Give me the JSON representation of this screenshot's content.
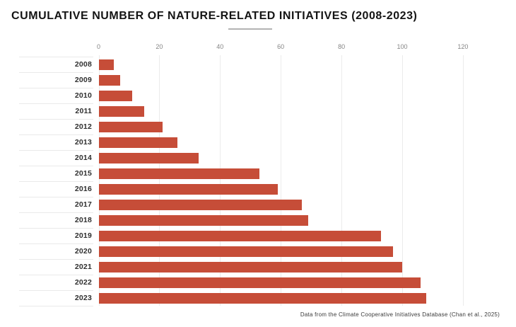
{
  "title": "CUMULATIVE NUMBER OF NATURE-RELATED INITIATIVES (2008-2023)",
  "footer": "Data from the Climate Cooperative Initiatives Database (Chan et al., 2025)",
  "colors": {
    "bar": "#C64D38",
    "gridline": "#ebebeb",
    "row_separator": "#e9e9e9",
    "title_text": "#141414",
    "tick_text": "#858585",
    "year_text": "#2e2e2e",
    "footer_text": "#3a3a3a",
    "title_underline": "#b3b3b3",
    "background": "#ffffff"
  },
  "chart_data": {
    "type": "bar",
    "orientation": "horizontal",
    "title": "CUMULATIVE NUMBER OF NATURE-RELATED INITIATIVES (2008-2023)",
    "categories": [
      "2008",
      "2009",
      "2010",
      "2011",
      "2012",
      "2013",
      "2014",
      "2015",
      "2016",
      "2017",
      "2018",
      "2019",
      "2020",
      "2021",
      "2022",
      "2023"
    ],
    "values": [
      5,
      7,
      11,
      15,
      21,
      26,
      33,
      53,
      59,
      67,
      69,
      93,
      97,
      100,
      106,
      108
    ],
    "xlabel": "",
    "ylabel": "",
    "xlim": [
      0,
      120
    ],
    "xticks": [
      0,
      20,
      40,
      60,
      80,
      100,
      120
    ],
    "grid": true,
    "legend": false,
    "annotation": "Data from the Climate Cooperative Initiatives Database (Chan et al., 2025)"
  }
}
